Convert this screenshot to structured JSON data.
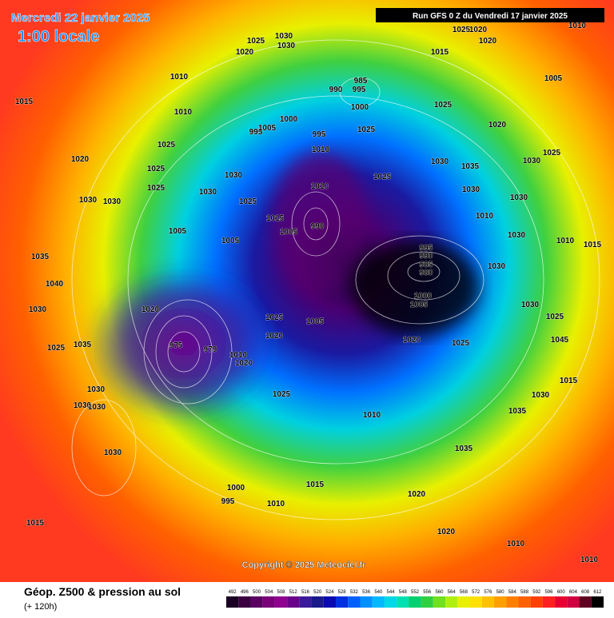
{
  "header": {
    "date": "Mercredi 22 janvier 2025",
    "time": "1:00 locale",
    "run": "Run GFS 0 Z du Vendredi 17 janvier 2025"
  },
  "map": {
    "pressure_labels": [
      1025,
      1030,
      1030,
      1020,
      1010,
      1015,
      1010,
      1025,
      1020,
      1025,
      1030,
      1025,
      1030,
      1030,
      1030,
      1025,
      1005,
      1005,
      1035,
      1040,
      1030,
      1020,
      1025,
      1035,
      1030,
      1030,
      1030,
      1030,
      1015,
      1000,
      995,
      1010,
      1025,
      1025,
      1020,
      1020,
      1010,
      1025,
      1020,
      1020,
      1010,
      1015,
      1005,
      990,
      985,
      995,
      1000,
      995,
      1005,
      1000,
      995,
      1010,
      1025,
      1025,
      1020,
      1025,
      1030,
      1030,
      1035,
      1030,
      1030,
      1010,
      1025,
      1015,
      1005,
      990,
      1010,
      1015,
      1030,
      1030,
      995,
      990,
      985,
      980,
      1000,
      1005,
      1005,
      1020,
      1025,
      1030,
      1025,
      1045,
      1015,
      1030,
      1035,
      1010,
      1035,
      1015,
      1020,
      1020,
      1010,
      1010,
      975,
      979,
      1010
    ],
    "copyright": "Copyright © 2025 Meteociel.fr"
  },
  "footer": {
    "title": "Géop. Z500 & pression au sol",
    "lead": "(+ 120h)"
  },
  "legend": {
    "values": [
      492,
      496,
      500,
      504,
      508,
      512,
      516,
      520,
      524,
      528,
      532,
      536,
      540,
      544,
      548,
      552,
      556,
      560,
      564,
      568,
      572,
      576,
      580,
      584,
      588,
      592,
      596,
      600,
      604,
      608,
      612
    ],
    "colors": [
      "#1a0022",
      "#3a0040",
      "#5a0060",
      "#7a007a",
      "#900090",
      "#6a008a",
      "#3a1a9a",
      "#1a1a8a",
      "#0a0ab0",
      "#0030e0",
      "#0060ff",
      "#0090ff",
      "#00b8ff",
      "#00d8e8",
      "#00e0b0",
      "#00d070",
      "#30d040",
      "#70e020",
      "#b0f010",
      "#e8f000",
      "#ffe000",
      "#ffc000",
      "#ffa000",
      "#ff8000",
      "#ff6000",
      "#ff4000",
      "#ff2020",
      "#e80030",
      "#d00040",
      "#600020",
      "#000000"
    ]
  }
}
